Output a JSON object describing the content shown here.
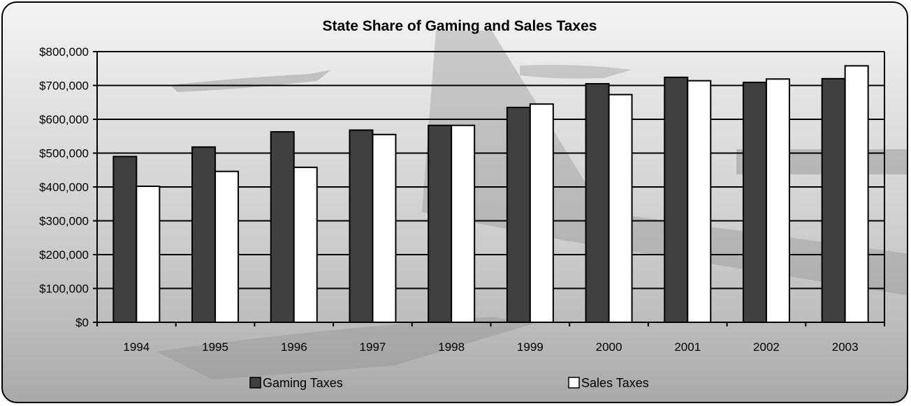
{
  "chart_data": {
    "type": "bar",
    "title": "State Share of Gaming and Sales Taxes",
    "xlabel": "",
    "ylabel": "",
    "categories": [
      "1994",
      "1995",
      "1996",
      "1997",
      "1998",
      "1999",
      "2000",
      "2001",
      "2002",
      "2003"
    ],
    "series": [
      {
        "name": "Gaming Taxes",
        "color": "#404040",
        "values": [
          490000,
          518000,
          563000,
          568000,
          582000,
          635000,
          705000,
          724000,
          709000,
          720000
        ]
      },
      {
        "name": "Sales Taxes",
        "color": "#ffffff",
        "values": [
          402000,
          446000,
          458000,
          555000,
          582000,
          645000,
          673000,
          714000,
          719000,
          758000
        ]
      }
    ],
    "ylim": [
      0,
      800000
    ],
    "yticks": [
      0,
      100000,
      200000,
      300000,
      400000,
      500000,
      600000,
      700000,
      800000
    ],
    "ytick_labels": [
      "$0",
      "$100,000",
      "$200,000",
      "$300,000",
      "$400,000",
      "$500,000",
      "$600,000",
      "$700,000",
      "$800,000"
    ],
    "grid": true,
    "legend_position": "bottom"
  }
}
